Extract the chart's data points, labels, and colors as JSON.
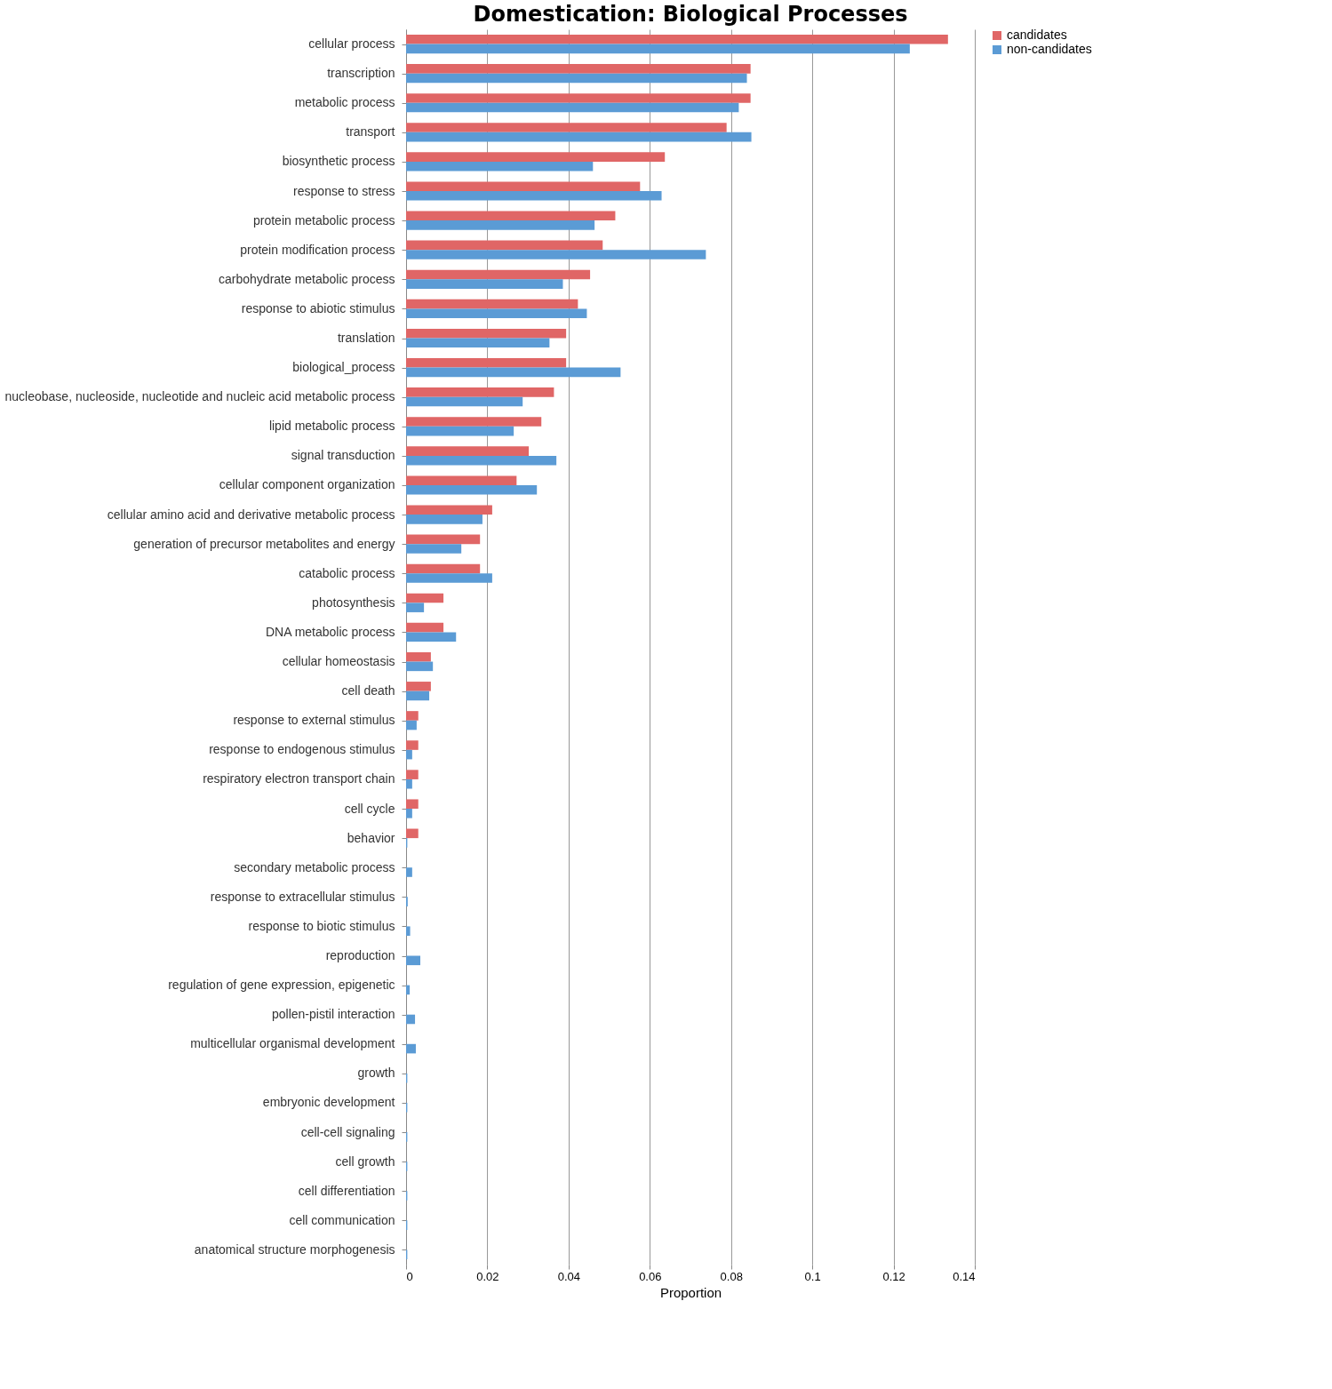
{
  "chart_data": {
    "type": "bar",
    "orientation": "horizontal",
    "title": "Domestication: Biological Processes",
    "xlabel": "Proportion",
    "categories": [
      "cellular process",
      "transcription",
      "metabolic process",
      "transport",
      "biosynthetic process",
      "response to stress",
      "protein metabolic process",
      "protein modification process",
      "carbohydrate metabolic process",
      "response to abiotic stimulus",
      "translation",
      "biological_process",
      "nucleobase, nucleoside, nucleotide and nucleic acid metabolic process",
      "lipid metabolic process",
      "signal transduction",
      "cellular component organization",
      "cellular amino acid and derivative metabolic process",
      "generation of precursor metabolites and energy",
      "catabolic process",
      "photosynthesis",
      "DNA metabolic process",
      "cellular homeostasis",
      "cell death",
      "response to external stimulus",
      "response to endogenous stimulus",
      "respiratory electron transport chain",
      "cell cycle",
      "behavior",
      "secondary metabolic process",
      "response to extracellular stimulus",
      "response to biotic stimulus",
      "reproduction",
      "regulation of gene expression, epigenetic",
      "pollen-pistil interaction",
      "multicellular organismal development",
      "growth",
      "embryonic development",
      "cell-cell signaling",
      "cell growth",
      "cell differentiation",
      "cell communication",
      "anatomical structure morphogenesis"
    ],
    "series": [
      {
        "name": "candidates",
        "color": "#e06666",
        "values": [
          0.1334,
          0.0848,
          0.0848,
          0.0789,
          0.0637,
          0.0576,
          0.0515,
          0.0484,
          0.0453,
          0.0423,
          0.0394,
          0.0394,
          0.0364,
          0.0333,
          0.0302,
          0.0272,
          0.0212,
          0.0182,
          0.0182,
          0.0092,
          0.0092,
          0.0061,
          0.0061,
          0.003,
          0.003,
          0.003,
          0.003,
          0.003,
          0,
          0,
          0,
          0,
          0,
          0,
          0,
          0,
          0,
          0,
          0,
          0,
          0,
          0
        ]
      },
      {
        "name": "non-candidates",
        "color": "#5b9bd5",
        "values": [
          0.124,
          0.0839,
          0.0819,
          0.085,
          0.046,
          0.0629,
          0.0464,
          0.0738,
          0.0386,
          0.0445,
          0.0353,
          0.0528,
          0.0287,
          0.0265,
          0.037,
          0.0322,
          0.0188,
          0.0136,
          0.0212,
          0.0044,
          0.0123,
          0.0066,
          0.0057,
          0.0026,
          0.0015,
          0.0015,
          0.0015,
          0.0003,
          0.0015,
          0.0004,
          0.001,
          0.0035,
          0.0009,
          0.0022,
          0.0024,
          0.0003,
          0.0003,
          0.0003,
          0.0003,
          0.0003,
          0.0003,
          0.0003
        ]
      }
    ],
    "xlim": [
      0,
      0.14
    ],
    "xticks": [
      0,
      0.02,
      0.04,
      0.06,
      0.08,
      0.1,
      0.12,
      0.14
    ],
    "grid": "x",
    "legend": "right"
  }
}
